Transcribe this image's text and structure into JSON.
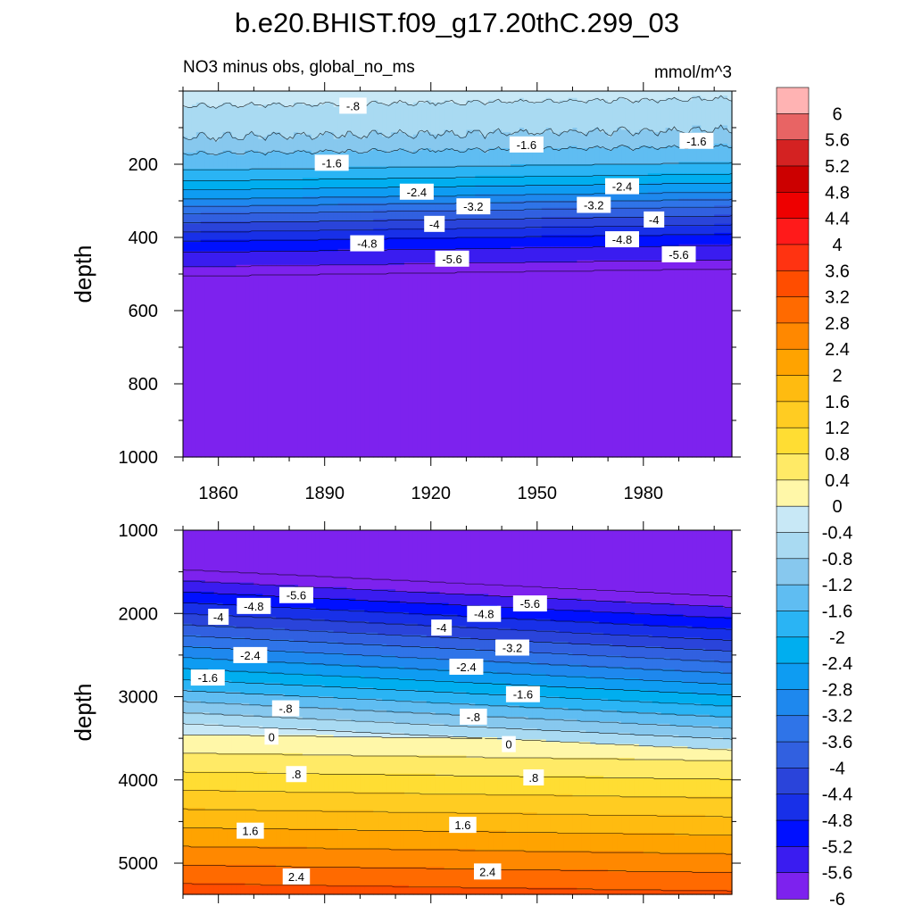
{
  "title": "b.e20.BHIST.f09_g17.20thC.299_03",
  "subtitle_left": "NO3 minus obs, global_no_ms",
  "subtitle_right": "mmol/m^3",
  "chart_data": [
    {
      "type": "heatmap",
      "name": "upper",
      "ylabel": "depth",
      "x_range": [
        1850,
        2005
      ],
      "ylim": [
        0,
        1000
      ],
      "y_reversed": true,
      "x_ticks": [
        1860,
        1890,
        1920,
        1950,
        1980
      ],
      "x_tick_labels": [
        "1860",
        "1890",
        "1920",
        "1950",
        "1980"
      ],
      "y_ticks": [
        200,
        400,
        600,
        800,
        1000
      ],
      "y_tick_labels": [
        "200",
        "400",
        "600",
        "800",
        "1000"
      ],
      "contour_labels": [
        {
          "text": "-.8",
          "x": 1898,
          "y": 40
        },
        {
          "text": "-1.6",
          "x": 1892,
          "y": 196
        },
        {
          "text": "-1.6",
          "x": 1947,
          "y": 146
        },
        {
          "text": "-1.6",
          "x": 1995,
          "y": 136
        },
        {
          "text": "-2.4",
          "x": 1916,
          "y": 275
        },
        {
          "text": "-2.4",
          "x": 1974,
          "y": 260
        },
        {
          "text": "-3.2",
          "x": 1932,
          "y": 315
        },
        {
          "text": "-3.2",
          "x": 1966,
          "y": 311
        },
        {
          "text": "-4",
          "x": 1921,
          "y": 363
        },
        {
          "text": "-4",
          "x": 1983,
          "y": 351
        },
        {
          "text": "-4.8",
          "x": 1902,
          "y": 416
        },
        {
          "text": "-4.8",
          "x": 1974,
          "y": 405
        },
        {
          "text": "-5.6",
          "x": 1926,
          "y": 458
        },
        {
          "text": "-5.6",
          "x": 1990,
          "y": 446
        }
      ]
    },
    {
      "type": "heatmap",
      "name": "lower",
      "ylabel": "depth",
      "x_range": [
        1850,
        2005
      ],
      "ylim": [
        1000,
        5375
      ],
      "y_reversed": true,
      "x_ticks": [
        1860,
        1890,
        1920,
        1950,
        1980
      ],
      "y_ticks": [
        1000,
        2000,
        3000,
        4000,
        5000
      ],
      "y_tick_labels": [
        "1000",
        "2000",
        "3000",
        "4000",
        "5000"
      ],
      "contour_labels": [
        {
          "text": "-5.6",
          "x": 1882,
          "y": 1780
        },
        {
          "text": "-5.6",
          "x": 1948,
          "y": 1880
        },
        {
          "text": "-4.8",
          "x": 1870,
          "y": 1910
        },
        {
          "text": "-4.8",
          "x": 1935,
          "y": 2005
        },
        {
          "text": "-4",
          "x": 1860,
          "y": 2040
        },
        {
          "text": "-4",
          "x": 1923,
          "y": 2170
        },
        {
          "text": "-3.2",
          "x": 1943,
          "y": 2410
        },
        {
          "text": "-2.4",
          "x": 1869,
          "y": 2500
        },
        {
          "text": "-2.4",
          "x": 1930,
          "y": 2640
        },
        {
          "text": "-1.6",
          "x": 1857,
          "y": 2770
        },
        {
          "text": "-1.6",
          "x": 1946,
          "y": 2970
        },
        {
          "text": "-.8",
          "x": 1879,
          "y": 3140
        },
        {
          "text": "-.8",
          "x": 1932,
          "y": 3240
        },
        {
          "text": "0",
          "x": 1875,
          "y": 3480
        },
        {
          "text": "0",
          "x": 1942,
          "y": 3570
        },
        {
          "text": ".8",
          "x": 1882,
          "y": 3930
        },
        {
          "text": ".8",
          "x": 1949,
          "y": 3970
        },
        {
          "text": "1.6",
          "x": 1869,
          "y": 4610
        },
        {
          "text": "1.6",
          "x": 1929,
          "y": 4540
        },
        {
          "text": "2.4",
          "x": 1882,
          "y": 5160
        },
        {
          "text": "2.4",
          "x": 1936,
          "y": 5100
        }
      ]
    }
  ],
  "colorbar": {
    "levels": [
      6,
      5.6,
      5.2,
      4.8,
      4.4,
      4,
      3.6,
      3.2,
      2.8,
      2.4,
      2,
      1.6,
      1.2,
      0.8,
      0.4,
      0,
      -0.4,
      -0.8,
      -1.2,
      -1.6,
      -2,
      -2.4,
      -2.8,
      -3.2,
      -3.6,
      -4,
      -4.4,
      -4.8,
      -5.2,
      -5.6,
      -6
    ],
    "labels": [
      "6",
      "5.6",
      "5.2",
      "4.8",
      "4.4",
      "4",
      "3.6",
      "3.2",
      "2.8",
      "2.4",
      "2",
      "1.6",
      "1.2",
      "0.8",
      "0.4",
      "0",
      "-0.4",
      "-0.8",
      "-1.2",
      "-1.6",
      "-2",
      "-2.4",
      "-2.8",
      "-3.2",
      "-3.6",
      "-4",
      "-4.4",
      "-4.8",
      "-5.2",
      "-5.6",
      "-6"
    ],
    "colors": [
      "#FFB3B3",
      "#E86464",
      "#D42222",
      "#CC0000",
      "#EE0000",
      "#FF1A1A",
      "#FF3311",
      "#FF4D00",
      "#FF6A00",
      "#FF8800",
      "#FFA300",
      "#FFBB10",
      "#FFCC22",
      "#FFDD33",
      "#FFEA66",
      "#FFF7A8",
      "#C8E8F6",
      "#A9DAF2",
      "#87C8EE",
      "#5FBDF2",
      "#2AB4F4",
      "#00AEEF",
      "#0E9CF2",
      "#1E88EE",
      "#2F74E8",
      "#3160E0",
      "#2A44DA",
      "#1830E8",
      "#0010FF",
      "#3A1CF0",
      "#7D22EE"
    ]
  }
}
